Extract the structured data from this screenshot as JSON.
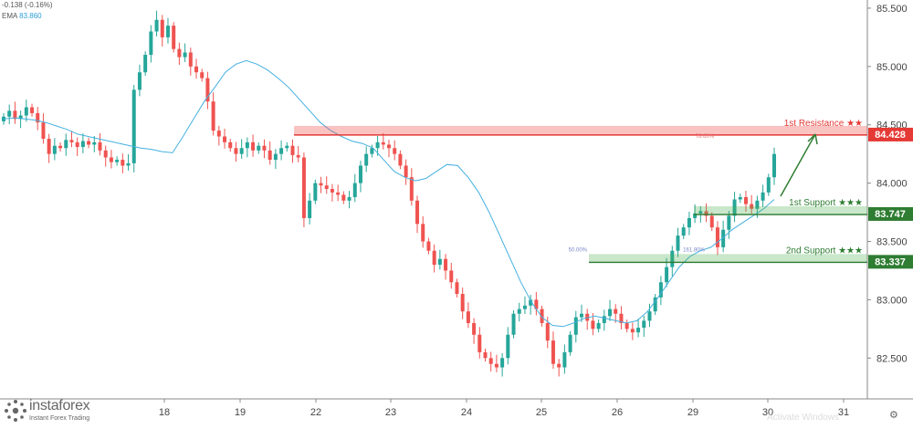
{
  "header": {
    "change_text": "-0.138 (-0.16%)",
    "ema_label": "EMA",
    "ema_value": "83.860"
  },
  "brand": {
    "name": "instaforex",
    "tagline": "Instant Forex Trading"
  },
  "watermark": "Activate Windows",
  "colors": {
    "up": "#26a69a",
    "down": "#ef5350",
    "ema": "#45b0e0",
    "resistance": "#e53935",
    "support": "#2e7d32"
  },
  "chart_data": {
    "type": "candlestick",
    "x_tick_labels": [
      "18",
      "19",
      "22",
      "23",
      "24",
      "25",
      "26",
      "29",
      "30",
      "31"
    ],
    "y_tick_labels": [
      "85.500",
      "85.000",
      "84.500",
      "84.000",
      "83.500",
      "83.000",
      "82.500"
    ],
    "ylim": [
      82.15,
      85.57
    ],
    "price_axis_position": "right",
    "levels": [
      {
        "label": "1st Resistance ★★",
        "value": "84.428",
        "color": "#e53935",
        "fib_label": "78.60%"
      },
      {
        "label": "1st Support ★★★",
        "value": "83.747",
        "color": "#2e7d32"
      },
      {
        "label": "2nd Support ★★★",
        "value": "83.337",
        "color": "#2e7d32",
        "fib_label_left": "50.00%",
        "fib_label_right": "161.80%"
      }
    ],
    "ohlc_close_path": [
      84.57,
      84.62,
      84.55,
      84.58,
      84.65,
      84.6,
      84.52,
      84.38,
      84.25,
      84.32,
      84.3,
      84.37,
      84.35,
      84.31,
      84.36,
      84.33,
      84.35,
      84.28,
      84.22,
      84.18,
      84.2,
      84.15,
      84.17,
      84.8,
      84.95,
      85.1,
      85.3,
      85.4,
      85.25,
      85.35,
      85.15,
      85.08,
      85.12,
      85.0,
      84.95,
      84.9,
      84.7,
      84.45,
      84.4,
      84.35,
      84.3,
      84.25,
      84.3,
      84.35,
      84.28,
      84.32,
      84.28,
      84.2,
      84.25,
      84.3,
      84.32,
      84.24,
      84.22,
      83.7,
      83.85,
      84.0,
      83.98,
      83.95,
      83.92,
      83.9,
      83.85,
      83.88,
      84.0,
      84.15,
      84.25,
      84.3,
      84.35,
      84.33,
      84.3,
      84.25,
      84.15,
      84.05,
      83.85,
      83.65,
      83.5,
      83.42,
      83.3,
      83.35,
      83.25,
      83.15,
      83.05,
      82.9,
      82.8,
      82.7,
      82.55,
      82.5,
      82.45,
      82.42,
      82.5,
      82.7,
      82.88,
      82.92,
      82.95,
      83.0,
      82.92,
      82.8,
      82.65,
      82.45,
      82.42,
      82.55,
      82.7,
      82.85,
      82.88,
      82.82,
      82.75,
      82.8,
      82.86,
      82.92,
      82.88,
      82.8,
      82.75,
      82.72,
      82.76,
      82.82,
      82.9,
      83.02,
      83.15,
      83.28,
      83.42,
      83.55,
      83.62,
      83.7,
      83.74,
      83.76,
      83.72,
      83.62,
      83.45,
      83.6,
      83.72,
      83.86,
      83.88,
      83.82,
      83.78,
      83.85,
      83.92,
      84.05,
      84.25
    ],
    "ema_path": [
      84.55,
      84.56,
      84.55,
      84.54,
      84.52,
      84.49,
      84.46,
      84.42,
      84.4,
      84.38,
      84.36,
      84.34,
      84.32,
      84.3,
      84.29,
      84.27,
      84.26,
      84.4,
      84.55,
      84.7,
      84.82,
      84.95,
      85.02,
      85.05,
      85.02,
      84.97,
      84.9,
      84.82,
      84.72,
      84.62,
      84.52,
      84.45,
      84.4,
      84.36,
      84.34,
      84.3,
      84.2,
      84.1,
      84.05,
      84.02,
      84.04,
      84.1,
      84.16,
      84.15,
      84.05,
      83.92,
      83.75,
      83.55,
      83.35,
      83.15,
      82.98,
      82.85,
      82.78,
      82.77,
      82.8,
      82.84,
      82.86,
      82.84,
      82.82,
      82.8,
      82.82,
      82.9,
      83.02,
      83.15,
      83.28,
      83.37,
      83.42,
      83.45,
      83.52,
      83.6,
      83.66,
      83.72,
      83.78,
      83.86
    ]
  }
}
